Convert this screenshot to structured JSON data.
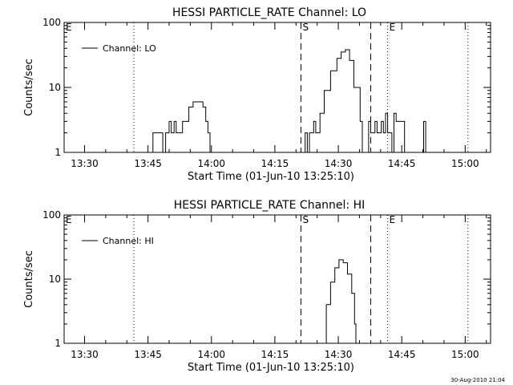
{
  "timestamp": "30-Aug-2010 21:04",
  "chart_data": [
    {
      "type": "line",
      "title": "HESSI PARTICLE_RATE Channel: LO",
      "xlabel": "Start Time (01-Jun-10 13:25:10)",
      "ylabel": "Counts/sec",
      "yscale": "log",
      "ylim": [
        1,
        100
      ],
      "xlim": [
        "13:25:10",
        "15:06:00"
      ],
      "x_ticks": [
        "13:30",
        "13:45",
        "14:00",
        "14:15",
        "14:30",
        "14:45",
        "15:00"
      ],
      "y_ticks": [
        "1",
        "10",
        "100"
      ],
      "legend": {
        "placement": "top-left",
        "entries": [
          "Channel: LO"
        ]
      },
      "markers": [
        {
          "label": "",
          "time": "13:41:40",
          "style": "dotted"
        },
        {
          "label": "S",
          "time": "14:21:10",
          "style": "dashed"
        },
        {
          "label": "",
          "time": "14:37:40",
          "style": "dashed"
        },
        {
          "label": "E",
          "time": "14:41:40",
          "style": "dotted"
        },
        {
          "label": "",
          "time": "15:00:40",
          "style": "dotted"
        }
      ],
      "corner_labels": {
        "left": "E"
      },
      "series": [
        {
          "name": "Channel: LO",
          "segments": [
            [
              [
                "13:45:40",
                1
              ],
              [
                "13:46:10",
                2
              ],
              [
                "13:48:10",
                2
              ],
              [
                "13:48:30",
                1
              ],
              [
                "13:49:10",
                2
              ],
              [
                "13:50:00",
                3
              ],
              [
                "13:50:30",
                2
              ],
              [
                "13:51:10",
                3
              ],
              [
                "13:51:40",
                2
              ],
              [
                "13:52:40",
                2
              ],
              [
                "13:53:10",
                3
              ],
              [
                "13:54:40",
                5
              ],
              [
                "13:55:40",
                6
              ],
              [
                "13:57:10",
                6
              ],
              [
                "13:58:00",
                5
              ],
              [
                "13:58:40",
                3
              ],
              [
                "13:59:10",
                2
              ],
              [
                "13:59:40",
                1
              ]
            ],
            [
              [
                "14:21:40",
                1
              ],
              [
                "14:22:10",
                2
              ],
              [
                "14:22:40",
                1
              ],
              [
                "14:23:10",
                2
              ],
              [
                "14:24:10",
                3
              ],
              [
                "14:24:40",
                2
              ],
              [
                "14:25:40",
                4
              ],
              [
                "14:26:40",
                9
              ],
              [
                "14:28:10",
                18
              ],
              [
                "14:29:40",
                28
              ],
              [
                "14:30:40",
                35
              ],
              [
                "14:31:40",
                38
              ],
              [
                "14:32:40",
                26
              ],
              [
                "14:33:40",
                10
              ],
              [
                "14:35:10",
                3
              ],
              [
                "14:35:40",
                1
              ],
              [
                "14:36:40",
                1
              ],
              [
                "14:37:10",
                3
              ],
              [
                "14:37:40",
                2
              ],
              [
                "14:38:40",
                3
              ],
              [
                "14:39:10",
                2
              ],
              [
                "14:40:10",
                3
              ],
              [
                "14:40:40",
                2
              ],
              [
                "14:41:10",
                4
              ],
              [
                "14:41:40",
                2
              ],
              [
                "14:42:10",
                2
              ],
              [
                "14:42:40",
                1
              ],
              [
                "14:43:10",
                4
              ],
              [
                "14:43:40",
                3
              ],
              [
                "14:45:10",
                3
              ],
              [
                "14:45:40",
                1
              ],
              [
                "14:47:00",
                1
              ]
            ],
            [
              [
                "14:49:10",
                1
              ],
              [
                "14:50:10",
                3
              ],
              [
                "14:50:40",
                1
              ]
            ]
          ]
        }
      ]
    },
    {
      "type": "line",
      "title": "HESSI PARTICLE_RATE Channel: HI",
      "xlabel": "Start Time (01-Jun-10 13:25:10)",
      "ylabel": "Counts/sec",
      "yscale": "log",
      "ylim": [
        1,
        100
      ],
      "xlim": [
        "13:25:10",
        "15:06:00"
      ],
      "x_ticks": [
        "13:30",
        "13:45",
        "14:00",
        "14:15",
        "14:30",
        "14:45",
        "15:00"
      ],
      "y_ticks": [
        "1",
        "10",
        "100"
      ],
      "legend": {
        "placement": "top-left",
        "entries": [
          "Channel: HI"
        ]
      },
      "markers": [
        {
          "label": "",
          "time": "13:41:40",
          "style": "dotted"
        },
        {
          "label": "S",
          "time": "14:21:10",
          "style": "dashed"
        },
        {
          "label": "",
          "time": "14:37:40",
          "style": "dashed"
        },
        {
          "label": "E",
          "time": "14:41:40",
          "style": "dotted"
        },
        {
          "label": "",
          "time": "15:00:40",
          "style": "dotted"
        }
      ],
      "corner_labels": {
        "left": "E"
      },
      "series": [
        {
          "name": "Channel: HI",
          "segments": [
            [
              [
                "14:26:10",
                1
              ],
              [
                "14:27:10",
                4
              ],
              [
                "14:28:10",
                9
              ],
              [
                "14:29:10",
                15
              ],
              [
                "14:30:10",
                20
              ],
              [
                "14:31:10",
                18
              ],
              [
                "14:32:10",
                12
              ],
              [
                "14:33:10",
                6
              ],
              [
                "14:33:50",
                2
              ],
              [
                "14:34:10",
                1
              ]
            ]
          ]
        }
      ]
    }
  ]
}
